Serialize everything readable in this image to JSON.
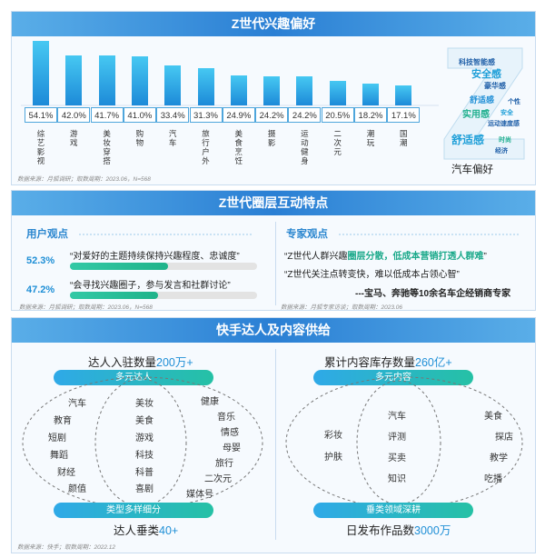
{
  "panel1": {
    "title": "Z世代兴趣偏好",
    "source": "数据来源：月狐调研；取数周期：2023.06，N=568",
    "wordcloud_caption": "汽车偏好",
    "wordcloud_words": [
      "科技智能感",
      "安全感",
      "豪华感",
      "舒适感",
      "实用感",
      "运动速度感",
      "安全",
      "舒适感",
      "时尚",
      "经济",
      "个性"
    ]
  },
  "chart_data": {
    "type": "bar",
    "categories": [
      "综艺影视",
      "游戏",
      "美妆穿搭",
      "购物",
      "汽车",
      "旅行户外",
      "美食烹饪",
      "摄影",
      "运动健身",
      "二次元",
      "潮玩",
      "国潮"
    ],
    "values": [
      54.1,
      42.0,
      41.7,
      41.0,
      33.4,
      31.3,
      24.9,
      24.2,
      24.2,
      20.5,
      18.2,
      17.1
    ],
    "labels": [
      "54.1%",
      "42.0%",
      "41.7%",
      "41.0%",
      "33.4%",
      "31.3%",
      "24.9%",
      "24.2%",
      "24.2%",
      "20.5%",
      "18.2%",
      "17.1%"
    ],
    "unit": "%",
    "ylim": [
      0,
      60
    ],
    "title": "",
    "xlabel": "",
    "ylabel": ""
  },
  "panel2": {
    "title": "Z世代圈层互动特点",
    "user_title": "用户观点",
    "user_items": [
      {
        "pct": "52.3%",
        "value": 52.3,
        "text": "“对爱好的主题持续保持兴趣程度、忠诚度”"
      },
      {
        "pct": "47.2%",
        "value": 47.2,
        "text": "“会寻找兴趣圈子，参与发言和社群讨论”"
      }
    ],
    "user_source": "数据来源：月狐调研；取数周期：2023.06，N=568",
    "expert_title": "专家观点",
    "expert_q1_pre": "“Z世代人群兴趣",
    "expert_q1_hl": "圈层分散，低成本营销打透人群难",
    "expert_q1_post": "”",
    "expert_q2": "“Z世代关注点转变快，难以低成本占领心智”",
    "expert_sign": "---宝马、奔驰等10余名车企经销商专家",
    "expert_source": "数据来源：月狐专家访谈；取数周期：2023.06"
  },
  "panel3": {
    "title": "快手达人及内容供给",
    "left_top_pre": "达人入驻数量",
    "left_top_val": "200万+",
    "left_cap_top": "多元达人",
    "left_cap_bottom": "类型多样细分",
    "left_bottom_pre": "达人垂类",
    "left_bottom_val": "40+",
    "left_outer_left": [
      "汽车",
      "教育",
      "短剧",
      "舞蹈",
      "财经",
      "颜值"
    ],
    "left_inner": [
      "美妆",
      "美食",
      "游戏",
      "科技",
      "科普",
      "喜剧"
    ],
    "left_outer_right": [
      "健康",
      "音乐",
      "情感",
      "母婴",
      "旅行",
      "二次元",
      "媒体号"
    ],
    "right_top_pre": "累计内容库存数量",
    "right_top_val": "260亿+",
    "right_cap_top": "多元内容",
    "right_cap_bottom": "垂类领域深耕",
    "right_bottom_pre": "日发布作品数",
    "right_bottom_val": "3000万",
    "right_outer_left": [
      "彩妆",
      "护肤"
    ],
    "right_inner": [
      "汽车",
      "评测",
      "买卖",
      "知识"
    ],
    "right_outer_right": [
      "美食",
      "探店",
      "教学",
      "吃播"
    ],
    "source": "数据来源：快手；取数周期：2022.12"
  }
}
